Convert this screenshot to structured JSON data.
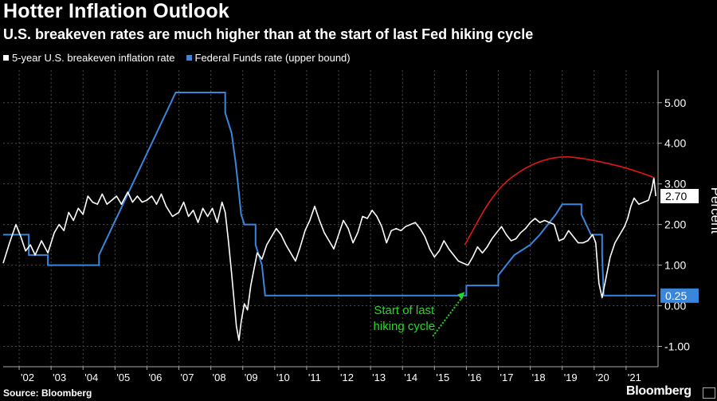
{
  "chart_data": {
    "type": "line",
    "title": "Hotter Inflation Outlook",
    "subtitle": "U.S. breakeven rates are much higher than at the start of last Fed hiking cycle",
    "ylabel": "Percent",
    "ylim": [
      -1.5,
      5.8
    ],
    "xlim": [
      2001.5,
      2022.0
    ],
    "y_ticks": [
      -1,
      0,
      1,
      2,
      3,
      4,
      5
    ],
    "y_tick_labels": [
      "-1.00",
      "0.00",
      "1.00",
      "2.00",
      "3.00",
      "4.00",
      "5.00"
    ],
    "x_tick_labels": [
      "'02",
      "'03",
      "'04",
      "'05",
      "'06",
      "'07",
      "'08",
      "'09",
      "'10",
      "'11",
      "'12",
      "'13",
      "'14",
      "'15",
      "'16",
      "'17",
      "'18",
      "'19",
      "'20",
      "'21"
    ],
    "x_tick_years": [
      2002,
      2003,
      2004,
      2005,
      2006,
      2007,
      2008,
      2009,
      2010,
      2011,
      2012,
      2013,
      2014,
      2015,
      2016,
      2017,
      2018,
      2019,
      2020,
      2021
    ],
    "series": [
      {
        "name": "5-year U.S. breakeven inflation rate",
        "color": "#ffffff",
        "last_value_label": "2.70",
        "points": [
          [
            2001.5,
            1.05
          ],
          [
            2001.7,
            1.55
          ],
          [
            2001.9,
            2.0
          ],
          [
            2002.05,
            1.7
          ],
          [
            2002.2,
            1.35
          ],
          [
            2002.35,
            1.5
          ],
          [
            2002.5,
            1.25
          ],
          [
            2002.7,
            1.6
          ],
          [
            2002.9,
            1.3
          ],
          [
            2003.1,
            1.8
          ],
          [
            2003.25,
            2.0
          ],
          [
            2003.4,
            1.85
          ],
          [
            2003.55,
            2.3
          ],
          [
            2003.7,
            2.1
          ],
          [
            2003.85,
            2.4
          ],
          [
            2004.0,
            2.25
          ],
          [
            2004.15,
            2.7
          ],
          [
            2004.3,
            2.55
          ],
          [
            2004.45,
            2.5
          ],
          [
            2004.6,
            2.75
          ],
          [
            2004.75,
            2.5
          ],
          [
            2004.9,
            2.6
          ],
          [
            2005.05,
            2.7
          ],
          [
            2005.2,
            2.5
          ],
          [
            2005.4,
            2.8
          ],
          [
            2005.55,
            2.55
          ],
          [
            2005.7,
            2.7
          ],
          [
            2005.85,
            2.55
          ],
          [
            2006.0,
            2.6
          ],
          [
            2006.15,
            2.7
          ],
          [
            2006.3,
            2.5
          ],
          [
            2006.45,
            2.75
          ],
          [
            2006.6,
            2.45
          ],
          [
            2006.8,
            2.2
          ],
          [
            2007.0,
            2.3
          ],
          [
            2007.15,
            2.55
          ],
          [
            2007.3,
            2.2
          ],
          [
            2007.45,
            2.35
          ],
          [
            2007.6,
            2.05
          ],
          [
            2007.75,
            2.4
          ],
          [
            2007.9,
            2.2
          ],
          [
            2008.05,
            2.4
          ],
          [
            2008.2,
            2.05
          ],
          [
            2008.35,
            2.55
          ],
          [
            2008.45,
            2.3
          ],
          [
            2008.55,
            1.6
          ],
          [
            2008.65,
            0.8
          ],
          [
            2008.72,
            0.2
          ],
          [
            2008.8,
            -0.5
          ],
          [
            2008.88,
            -0.85
          ],
          [
            2008.95,
            -0.4
          ],
          [
            2009.05,
            0.05
          ],
          [
            2009.15,
            -0.1
          ],
          [
            2009.25,
            0.5
          ],
          [
            2009.35,
            0.9
          ],
          [
            2009.45,
            1.3
          ],
          [
            2009.6,
            1.15
          ],
          [
            2009.75,
            1.5
          ],
          [
            2009.9,
            1.7
          ],
          [
            2010.05,
            1.9
          ],
          [
            2010.2,
            1.75
          ],
          [
            2010.35,
            1.5
          ],
          [
            2010.5,
            1.3
          ],
          [
            2010.65,
            1.1
          ],
          [
            2010.8,
            1.45
          ],
          [
            2010.95,
            1.85
          ],
          [
            2011.1,
            2.1
          ],
          [
            2011.25,
            2.45
          ],
          [
            2011.4,
            2.1
          ],
          [
            2011.55,
            1.8
          ],
          [
            2011.7,
            1.6
          ],
          [
            2011.85,
            1.4
          ],
          [
            2012.0,
            1.75
          ],
          [
            2012.15,
            2.1
          ],
          [
            2012.3,
            1.9
          ],
          [
            2012.45,
            1.55
          ],
          [
            2012.6,
            1.8
          ],
          [
            2012.75,
            2.2
          ],
          [
            2012.9,
            2.15
          ],
          [
            2013.05,
            2.35
          ],
          [
            2013.2,
            2.2
          ],
          [
            2013.35,
            1.95
          ],
          [
            2013.5,
            1.55
          ],
          [
            2013.65,
            1.85
          ],
          [
            2013.8,
            1.9
          ],
          [
            2013.95,
            1.85
          ],
          [
            2014.1,
            1.95
          ],
          [
            2014.25,
            2.0
          ],
          [
            2014.4,
            2.05
          ],
          [
            2014.55,
            1.9
          ],
          [
            2014.7,
            1.7
          ],
          [
            2014.85,
            1.4
          ],
          [
            2015.0,
            1.2
          ],
          [
            2015.15,
            1.35
          ],
          [
            2015.3,
            1.6
          ],
          [
            2015.45,
            1.4
          ],
          [
            2015.6,
            1.25
          ],
          [
            2015.75,
            1.1
          ],
          [
            2015.9,
            1.05
          ],
          [
            2016.05,
            1.0
          ],
          [
            2016.2,
            1.2
          ],
          [
            2016.35,
            1.45
          ],
          [
            2016.5,
            1.3
          ],
          [
            2016.65,
            1.45
          ],
          [
            2016.8,
            1.65
          ],
          [
            2016.95,
            1.8
          ],
          [
            2017.1,
            1.95
          ],
          [
            2017.25,
            1.75
          ],
          [
            2017.4,
            1.6
          ],
          [
            2017.55,
            1.65
          ],
          [
            2017.7,
            1.8
          ],
          [
            2017.85,
            1.9
          ],
          [
            2018.0,
            2.05
          ],
          [
            2018.15,
            2.15
          ],
          [
            2018.3,
            2.05
          ],
          [
            2018.45,
            2.1
          ],
          [
            2018.6,
            2.05
          ],
          [
            2018.75,
            2.0
          ],
          [
            2018.9,
            1.6
          ],
          [
            2019.05,
            1.65
          ],
          [
            2019.2,
            1.85
          ],
          [
            2019.35,
            1.7
          ],
          [
            2019.5,
            1.55
          ],
          [
            2019.65,
            1.55
          ],
          [
            2019.8,
            1.6
          ],
          [
            2019.95,
            1.75
          ],
          [
            2020.05,
            1.55
          ],
          [
            2020.15,
            0.55
          ],
          [
            2020.25,
            0.2
          ],
          [
            2020.35,
            0.6
          ],
          [
            2020.5,
            1.2
          ],
          [
            2020.65,
            1.55
          ],
          [
            2020.8,
            1.75
          ],
          [
            2020.95,
            1.95
          ],
          [
            2021.05,
            2.15
          ],
          [
            2021.15,
            2.45
          ],
          [
            2021.25,
            2.65
          ],
          [
            2021.4,
            2.5
          ],
          [
            2021.55,
            2.55
          ],
          [
            2021.7,
            2.6
          ],
          [
            2021.8,
            2.85
          ],
          [
            2021.87,
            3.15
          ],
          [
            2021.93,
            2.7
          ]
        ]
      },
      {
        "name": "Federal Funds rate (upper bound)",
        "color": "#3a86dc",
        "last_value_label": "0.25",
        "points": [
          [
            2001.5,
            1.75
          ],
          [
            2002.3,
            1.75
          ],
          [
            2002.3,
            1.25
          ],
          [
            2002.9,
            1.25
          ],
          [
            2002.9,
            1.0
          ],
          [
            2004.5,
            1.0
          ],
          [
            2004.5,
            1.25
          ],
          [
            2004.65,
            1.5
          ],
          [
            2004.8,
            1.75
          ],
          [
            2004.95,
            2.0
          ],
          [
            2005.1,
            2.25
          ],
          [
            2005.25,
            2.5
          ],
          [
            2005.4,
            2.75
          ],
          [
            2005.55,
            3.0
          ],
          [
            2005.7,
            3.25
          ],
          [
            2005.85,
            3.5
          ],
          [
            2006.0,
            3.75
          ],
          [
            2006.15,
            4.0
          ],
          [
            2006.3,
            4.25
          ],
          [
            2006.45,
            4.5
          ],
          [
            2006.6,
            4.75
          ],
          [
            2006.75,
            5.0
          ],
          [
            2006.9,
            5.25
          ],
          [
            2008.45,
            5.25
          ],
          [
            2008.45,
            4.75
          ],
          [
            2008.55,
            4.5
          ],
          [
            2008.65,
            4.25
          ],
          [
            2008.78,
            3.5
          ],
          [
            2008.85,
            3.0
          ],
          [
            2008.95,
            2.25
          ],
          [
            2009.05,
            2.0
          ],
          [
            2009.4,
            2.0
          ],
          [
            2009.4,
            1.5
          ],
          [
            2009.6,
            1.0
          ],
          [
            2009.7,
            0.25
          ],
          [
            2016.0,
            0.25
          ],
          [
            2016.0,
            0.5
          ],
          [
            2017.0,
            0.5
          ],
          [
            2017.0,
            0.75
          ],
          [
            2017.25,
            1.0
          ],
          [
            2017.5,
            1.25
          ],
          [
            2018.0,
            1.5
          ],
          [
            2018.3,
            1.75
          ],
          [
            2018.55,
            2.0
          ],
          [
            2018.8,
            2.25
          ],
          [
            2019.0,
            2.5
          ],
          [
            2019.6,
            2.5
          ],
          [
            2019.6,
            2.25
          ],
          [
            2019.75,
            2.0
          ],
          [
            2019.9,
            1.75
          ],
          [
            2020.25,
            1.75
          ],
          [
            2020.25,
            1.25
          ],
          [
            2020.3,
            0.25
          ],
          [
            2021.93,
            0.25
          ]
        ]
      }
    ],
    "trend_curve": {
      "color": "#e01818",
      "points": [
        [
          2015.95,
          1.5
        ],
        [
          2016.9,
          2.85
        ],
        [
          2017.9,
          3.45
        ],
        [
          2018.9,
          3.7
        ],
        [
          2019.9,
          3.6
        ],
        [
          2021.0,
          3.4
        ],
        [
          2021.9,
          3.15
        ]
      ]
    },
    "annotations": [
      {
        "text_lines": [
          "Start of last",
          "hiking cycle"
        ],
        "color": "#27d827",
        "anchor_x": 2015.95,
        "anchor_y": 0.3,
        "from_x": 2014.95,
        "from_y": -0.75
      }
    ]
  },
  "legend": [
    {
      "label": "5-year U.S. breakeven inflation rate",
      "color": "#ffffff"
    },
    {
      "label": "Federal Funds rate (upper bound)",
      "color": "#3a86dc"
    }
  ],
  "footer": {
    "source": "Source: Bloomberg",
    "brand": "Bloomberg"
  }
}
